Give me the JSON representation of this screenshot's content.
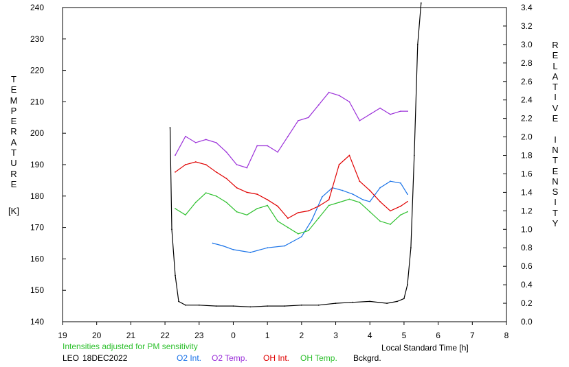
{
  "chart_data": {
    "type": "line",
    "station": "LEO",
    "date": "18DEC2022",
    "note": "Intensities adjusted for PM sensitivity",
    "xlabel": "Local Standard Time [h]",
    "left_axis": {
      "label_letters": [
        "T",
        "E",
        "M",
        "P",
        "E",
        "R",
        "A",
        "T",
        "U",
        "R",
        "E"
      ],
      "unit": "[K]",
      "range": [
        140,
        240
      ],
      "ticks": [
        "140",
        "150",
        "160",
        "170",
        "180",
        "190",
        "200",
        "210",
        "220",
        "230",
        "240"
      ]
    },
    "right_axis": {
      "label_letters": [
        "R",
        "E",
        "L",
        "A",
        "T",
        "I",
        "V",
        "E",
        "",
        "I",
        "N",
        "T",
        "E",
        "N",
        "S",
        "I",
        "T",
        "Y"
      ],
      "range": [
        0.0,
        3.4
      ],
      "ticks": [
        "0.0",
        "0.2",
        "0.4",
        "0.6",
        "0.8",
        "1.0",
        "1.2",
        "1.4",
        "1.6",
        "1.8",
        "2.0",
        "2.2",
        "2.4",
        "2.6",
        "2.8",
        "3.0",
        "3.2",
        "3.4"
      ]
    },
    "x_axis": {
      "range": [
        19,
        32
      ],
      "tick_labels": [
        "19",
        "20",
        "21",
        "22",
        "23",
        "0",
        "1",
        "2",
        "3",
        "4",
        "5",
        "6",
        "7",
        "8"
      ]
    },
    "series": [
      {
        "name": "O2 Int.",
        "color": "#1a73e8",
        "axis": "right",
        "x": [
          23.4,
          23.7,
          24.0,
          24.5,
          25.0,
          25.5,
          26.0,
          26.3,
          26.6,
          26.9,
          27.2,
          27.5,
          27.8,
          28.0,
          28.3,
          28.6,
          28.9,
          29.1
        ],
        "y": [
          0.85,
          0.82,
          0.78,
          0.75,
          0.8,
          0.82,
          0.92,
          1.1,
          1.35,
          1.45,
          1.42,
          1.38,
          1.32,
          1.3,
          1.45,
          1.52,
          1.5,
          1.38
        ]
      },
      {
        "name": "O2 Temp.",
        "color": "#9b30d9",
        "axis": "left",
        "x": [
          22.3,
          22.6,
          22.9,
          23.2,
          23.5,
          23.8,
          24.1,
          24.4,
          24.7,
          25.0,
          25.3,
          25.6,
          25.9,
          26.2,
          26.5,
          26.8,
          27.1,
          27.4,
          27.7,
          28.0,
          28.3,
          28.6,
          28.9,
          29.1
        ],
        "y": [
          193,
          199,
          197,
          198,
          197,
          194,
          190,
          189,
          196,
          196,
          194,
          199,
          204,
          205,
          209,
          213,
          212,
          210,
          204,
          206,
          208,
          206,
          207,
          207
        ]
      },
      {
        "name": "OH Int.",
        "color": "#e00000",
        "axis": "right",
        "x": [
          22.3,
          22.6,
          22.9,
          23.2,
          23.5,
          23.8,
          24.1,
          24.4,
          24.7,
          25.0,
          25.3,
          25.6,
          25.9,
          26.2,
          26.5,
          26.8,
          27.1,
          27.4,
          27.7,
          28.0,
          28.3,
          28.6,
          28.9,
          29.1
        ],
        "y": [
          1.62,
          1.7,
          1.73,
          1.7,
          1.62,
          1.55,
          1.45,
          1.4,
          1.38,
          1.32,
          1.25,
          1.12,
          1.18,
          1.2,
          1.25,
          1.32,
          1.7,
          1.8,
          1.52,
          1.42,
          1.3,
          1.2,
          1.25,
          1.3
        ]
      },
      {
        "name": "OH Temp.",
        "color": "#2ec02e",
        "axis": "left",
        "x": [
          22.3,
          22.6,
          22.9,
          23.2,
          23.5,
          23.8,
          24.1,
          24.4,
          24.7,
          25.0,
          25.3,
          25.6,
          25.9,
          26.2,
          26.5,
          26.8,
          27.1,
          27.4,
          27.7,
          28.0,
          28.3,
          28.6,
          28.9,
          29.1
        ],
        "y": [
          176,
          174,
          178,
          181,
          180,
          178,
          175,
          174,
          176,
          177,
          172,
          170,
          168,
          169,
          173,
          177,
          178,
          179,
          178,
          175,
          172,
          171,
          174,
          175
        ]
      },
      {
        "name": "Bckgrd.",
        "color": "#000000",
        "axis": "right",
        "x": [
          22.15,
          22.2,
          22.3,
          22.4,
          22.6,
          23.0,
          23.5,
          24.0,
          24.5,
          25.0,
          25.5,
          26.0,
          26.5,
          27.0,
          27.5,
          28.0,
          28.5,
          28.8,
          29.0,
          29.1,
          29.2,
          29.3,
          29.4,
          29.5
        ],
        "y": [
          2.1,
          1.0,
          0.5,
          0.22,
          0.18,
          0.18,
          0.17,
          0.17,
          0.16,
          0.17,
          0.17,
          0.18,
          0.18,
          0.2,
          0.21,
          0.22,
          0.2,
          0.22,
          0.25,
          0.4,
          0.8,
          1.8,
          3.0,
          3.45
        ]
      }
    ]
  }
}
